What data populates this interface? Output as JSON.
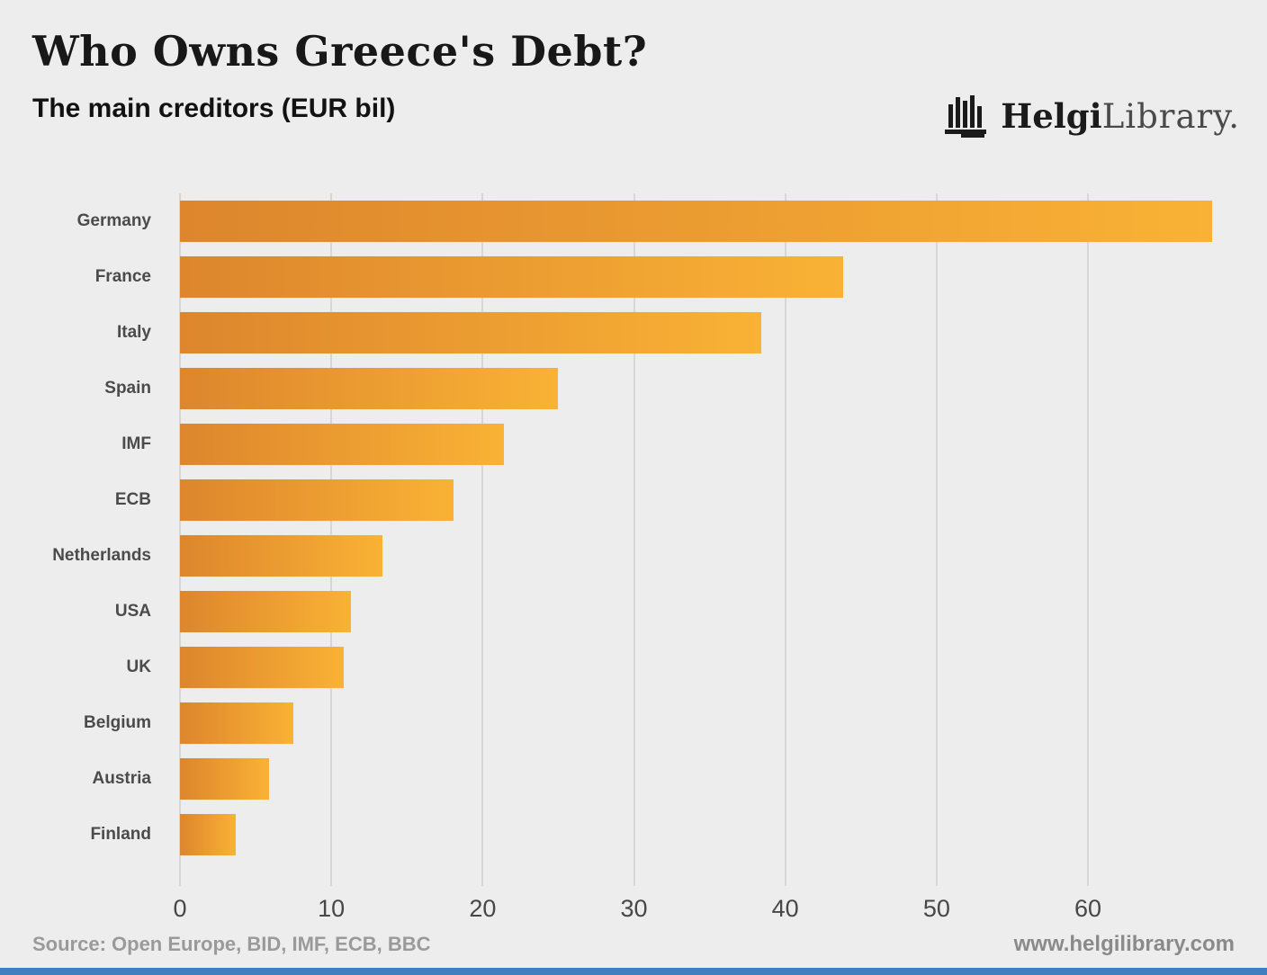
{
  "chart_data": {
    "type": "bar",
    "orientation": "horizontal",
    "title": "Who Owns Greece's Debt?",
    "subtitle": "The main creditors (EUR bil)",
    "categories": [
      "Germany",
      "France",
      "Italy",
      "Spain",
      "IMF",
      "ECB",
      "Netherlands",
      "USA",
      "UK",
      "Belgium",
      "Austria",
      "Finland"
    ],
    "values": [
      68.2,
      43.8,
      38.4,
      25.0,
      21.4,
      18.1,
      13.4,
      11.3,
      10.8,
      7.5,
      5.9,
      3.7
    ],
    "xticks": [
      0,
      10,
      20,
      30,
      40,
      50,
      60
    ],
    "xlim": [
      0,
      68.5
    ],
    "grid": true,
    "legend": "none",
    "bar_color_start": "#dd862d",
    "bar_color_end": "#f9b235",
    "background_color": "#ededed"
  },
  "logo": {
    "brand_bold": "Helgi",
    "brand_light": "Library."
  },
  "footer": {
    "source": "Source: Open Europe, BID, IMF, ECB, BBC",
    "website": "www.helgilibrary.com"
  },
  "accent": {
    "bottom_strip_color": "#3f7fc1"
  }
}
